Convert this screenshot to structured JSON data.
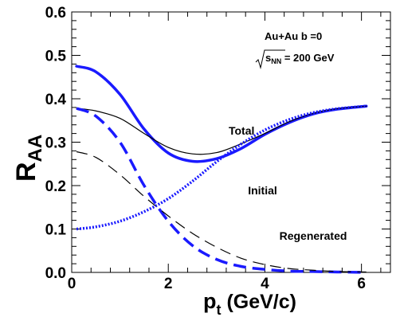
{
  "chart_data": {
    "type": "line",
    "xlim": [
      0,
      6.6
    ],
    "ylim": [
      0,
      0.6
    ],
    "x_ticks": [
      "0",
      "2",
      "4",
      "6"
    ],
    "y_ticks": [
      "0.0",
      "0.1",
      "0.2",
      "0.3",
      "0.4",
      "0.5",
      "0.6"
    ],
    "xlabel": {
      "main": "p",
      "sub": "t",
      "rest": " (GeV/c)"
    },
    "ylabel": {
      "main": "R",
      "sub": "AA"
    },
    "header_line1": "Au+Au  b =0",
    "header_line2": {
      "s": "s",
      "sub": "NN",
      "rest": " = 200 GeV"
    },
    "grid": false,
    "series": [
      {
        "key": "thick_total",
        "color": "#1a1aff",
        "style": "solid-thick",
        "x": [
          0.1,
          0.5,
          1.0,
          1.5,
          2.0,
          2.5,
          3.0,
          3.5,
          4.0,
          4.5,
          5.0,
          5.5,
          6.1
        ],
        "y": [
          0.475,
          0.462,
          0.41,
          0.33,
          0.275,
          0.256,
          0.262,
          0.285,
          0.318,
          0.345,
          0.365,
          0.376,
          0.383
        ]
      },
      {
        "key": "thin_total",
        "color": "#000000",
        "style": "solid-thin",
        "x": [
          0.1,
          0.5,
          1.0,
          1.5,
          2.0,
          2.5,
          3.0,
          3.5,
          4.0,
          4.5,
          5.0,
          5.5,
          6.1
        ],
        "y": [
          0.378,
          0.372,
          0.355,
          0.32,
          0.288,
          0.273,
          0.276,
          0.296,
          0.32,
          0.347,
          0.366,
          0.377,
          0.383
        ]
      },
      {
        "key": "thick_regenerated",
        "color": "#1a1aff",
        "style": "dashed-thick",
        "x": [
          0.1,
          0.5,
          1.0,
          1.5,
          2.0,
          2.5,
          3.0,
          3.5,
          4.0,
          4.5,
          5.0,
          5.5,
          6.1
        ],
        "y": [
          0.378,
          0.36,
          0.3,
          0.2,
          0.118,
          0.062,
          0.03,
          0.014,
          0.007,
          0.003,
          0.002,
          0.001,
          0.0
        ]
      },
      {
        "key": "thin_regenerated",
        "color": "#000000",
        "style": "dashed-thin",
        "x": [
          0.1,
          0.5,
          1.0,
          1.5,
          2.0,
          2.5,
          3.0,
          3.5,
          4.0,
          4.5,
          5.0,
          5.5,
          6.1
        ],
        "y": [
          0.278,
          0.265,
          0.225,
          0.175,
          0.13,
          0.09,
          0.058,
          0.033,
          0.018,
          0.009,
          0.005,
          0.002,
          0.001
        ]
      },
      {
        "key": "initial",
        "color": "#1a1aff",
        "style": "dotted",
        "x": [
          0.1,
          0.5,
          1.0,
          1.5,
          2.0,
          2.5,
          3.0,
          3.5,
          4.0,
          4.5,
          5.0,
          5.5,
          6.1
        ],
        "y": [
          0.1,
          0.105,
          0.118,
          0.14,
          0.17,
          0.21,
          0.255,
          0.295,
          0.328,
          0.352,
          0.368,
          0.377,
          0.383
        ]
      }
    ],
    "annotations": [
      {
        "text": "Total",
        "x": 3.25,
        "y": 0.317
      },
      {
        "text": "Initial",
        "x": 3.65,
        "y": 0.18
      },
      {
        "text": "Regenerated",
        "x": 4.3,
        "y": 0.075
      }
    ]
  }
}
